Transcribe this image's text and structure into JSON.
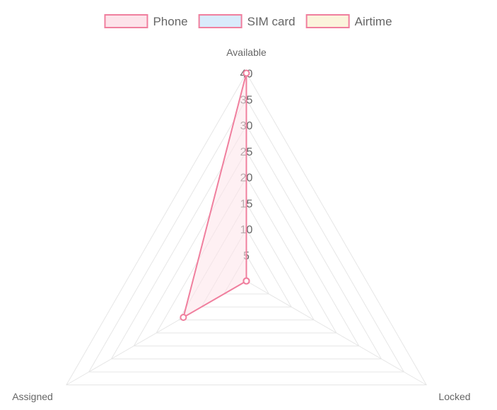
{
  "chart_data": {
    "type": "radar",
    "labels": [
      "Available",
      "Locked",
      "Assigned"
    ],
    "r_ticks": [
      5,
      10,
      15,
      20,
      25,
      30,
      35,
      40
    ],
    "r_range": [
      0,
      40
    ],
    "series": [
      {
        "name": "Phone",
        "values": [
          40,
          0,
          14
        ],
        "stroke": "#f07f9e",
        "fill": "#fde3ea"
      },
      {
        "name": "SIM card",
        "values": [
          0,
          0,
          0
        ],
        "stroke": "#f07f9e",
        "fill": "#d9ebfb"
      },
      {
        "name": "Airtime",
        "values": [
          0,
          0,
          0
        ],
        "stroke": "#f07f9e",
        "fill": "#fbf4dc"
      }
    ],
    "legend_position": "top",
    "grid": true
  }
}
